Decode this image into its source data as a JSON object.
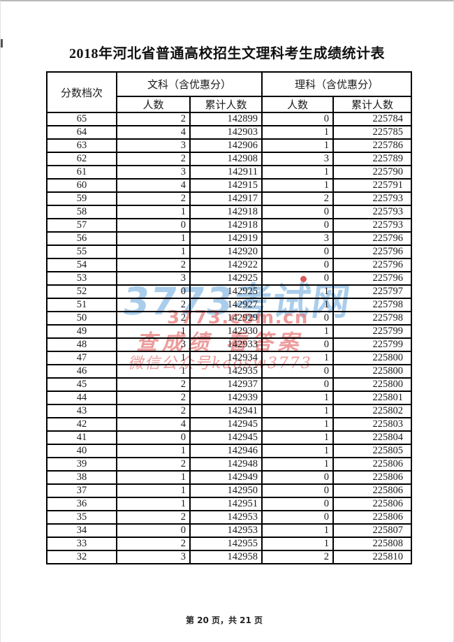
{
  "title": "2018年河北省普通高校招生文理科考生成绩统计表",
  "table": {
    "col_score": "分数档次",
    "group_wenke": "文科（含优惠分）",
    "group_like": "理科（含优惠分）",
    "sub_count": "人数",
    "sub_cumulative": "累计人数",
    "rows": [
      [
        65,
        2,
        142899,
        0,
        225784
      ],
      [
        64,
        4,
        142903,
        1,
        225785
      ],
      [
        63,
        3,
        142906,
        1,
        225786
      ],
      [
        62,
        2,
        142908,
        3,
        225789
      ],
      [
        61,
        3,
        142911,
        1,
        225790
      ],
      [
        60,
        4,
        142915,
        1,
        225791
      ],
      [
        59,
        2,
        142917,
        2,
        225793
      ],
      [
        58,
        1,
        142918,
        0,
        225793
      ],
      [
        57,
        0,
        142918,
        0,
        225793
      ],
      [
        56,
        1,
        142919,
        3,
        225796
      ],
      [
        55,
        1,
        142920,
        0,
        225796
      ],
      [
        54,
        2,
        142922,
        0,
        225796
      ],
      [
        53,
        3,
        142925,
        0,
        225796
      ],
      [
        52,
        0,
        142925,
        1,
        225797
      ],
      [
        51,
        2,
        142927,
        1,
        225798
      ],
      [
        50,
        2,
        142929,
        0,
        225798
      ],
      [
        49,
        1,
        142930,
        1,
        225799
      ],
      [
        48,
        3,
        142933,
        0,
        225799
      ],
      [
        47,
        1,
        142934,
        1,
        225800
      ],
      [
        46,
        1,
        142935,
        0,
        225800
      ],
      [
        45,
        2,
        142937,
        0,
        225800
      ],
      [
        44,
        2,
        142939,
        1,
        225801
      ],
      [
        43,
        2,
        142941,
        1,
        225802
      ],
      [
        42,
        4,
        142945,
        1,
        225803
      ],
      [
        41,
        0,
        142945,
        1,
        225804
      ],
      [
        40,
        1,
        142946,
        1,
        225805
      ],
      [
        39,
        2,
        142948,
        1,
        225806
      ],
      [
        38,
        1,
        142949,
        0,
        225806
      ],
      [
        37,
        1,
        142950,
        0,
        225806
      ],
      [
        36,
        1,
        142951,
        0,
        225806
      ],
      [
        35,
        2,
        142953,
        0,
        225806
      ],
      [
        34,
        0,
        142953,
        1,
        225807
      ],
      [
        33,
        2,
        142955,
        1,
        225808
      ],
      [
        32,
        3,
        142958,
        2,
        225810
      ]
    ]
  },
  "watermark": {
    "site_name": "3773考试网",
    "site_url": "3773.com.cn",
    "slogan": "查成绩 看答案",
    "wechat": "微信公众号kaosw3773",
    "blue_color": "rgba(155,196,231,0.85)",
    "red_color": "rgba(230,122,122,0.75)",
    "dot_color": "rgba(215,60,60,0.85)"
  },
  "footer": {
    "page_info": "第 20 页，共 21 页"
  }
}
